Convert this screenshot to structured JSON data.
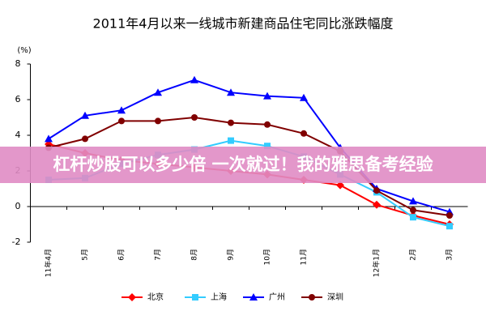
{
  "chart_data": {
    "type": "line",
    "title": "2011年4月以来一线城市新建商品住宅同比涨跌幅度",
    "y_axis_label": "(%)",
    "categories": [
      "11年4月",
      "5月",
      "6月",
      "7月",
      "8月",
      "9月",
      "10月",
      "11月",
      null,
      "12年1月",
      "2月",
      "3月"
    ],
    "series": [
      {
        "name": "北京",
        "color": "#ff0000",
        "marker": "diamond",
        "values": [
          3.5,
          3.0,
          2.6,
          2.4,
          2.2,
          2.0,
          1.8,
          1.5,
          1.2,
          0.1,
          -0.5,
          -1.0
        ]
      },
      {
        "name": "上海",
        "color": "#33ccff",
        "marker": "square",
        "values": [
          1.5,
          1.6,
          2.4,
          2.9,
          3.2,
          3.7,
          3.4,
          2.8,
          1.8,
          0.8,
          -0.6,
          -1.1
        ]
      },
      {
        "name": "广州",
        "color": "#0000ff",
        "marker": "triangle",
        "values": [
          3.8,
          5.1,
          5.4,
          6.4,
          7.1,
          6.4,
          6.2,
          6.1,
          3.3,
          1.0,
          0.3,
          -0.3
        ]
      },
      {
        "name": "深圳",
        "color": "#800000",
        "marker": "circle",
        "values": [
          3.3,
          3.8,
          4.8,
          4.8,
          5.0,
          4.7,
          4.6,
          4.1,
          3.1,
          0.9,
          -0.2,
          -0.5
        ]
      }
    ],
    "ylim": [
      -2,
      8
    ],
    "yticks": [
      -2,
      0,
      2,
      4,
      6,
      8
    ],
    "grid": false,
    "legend": "bottom"
  },
  "banner": "杠杆炒股可以多少倍 一次就过！我的雅思备考经验"
}
